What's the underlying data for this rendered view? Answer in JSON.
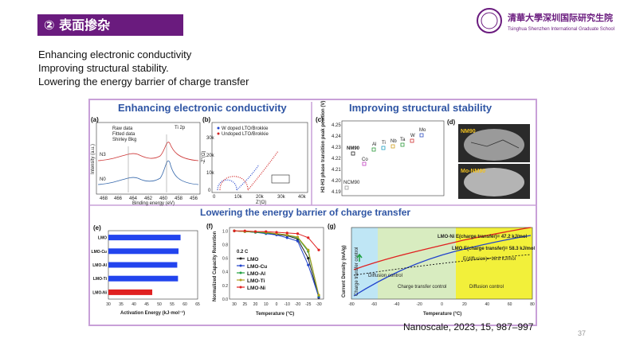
{
  "slide": {
    "title": "② 表面掺杂",
    "bullets": [
      "Enhancing electronic conductivity",
      "Improving structural stability.",
      "Lowering the energy barrier of charge transfer"
    ],
    "citation": "Nanoscale, 2023, 15, 987–997",
    "page_number": "37",
    "logo_text": "清華大學深圳国际研究生院",
    "logo_subtext": "Tsinghua Shenzhen International Graduate School"
  },
  "figure": {
    "section_titles": {
      "top_left": "Enhancing electronic conductivity",
      "top_right": "Improving structural stability",
      "bottom": "Lowering the energy barrier of charge transfer"
    },
    "panel_letters": [
      "(a)",
      "(b)",
      "(c)",
      "(d)",
      "(e)",
      "(f)",
      "(g)"
    ],
    "panel_a": {
      "legend": [
        "Raw data",
        "Fitted data",
        "Shirley Bkg"
      ],
      "corner_label": "Ti 2p",
      "samples": [
        "N3",
        "N0"
      ],
      "ylabel": "Intensity (a.u.)",
      "xlabel": "Binding energy (eV)",
      "xticks": [
        "468",
        "466",
        "464",
        "462",
        "460",
        "458",
        "456"
      ]
    },
    "panel_b": {
      "legend": [
        "W doped LTO/Brokkie",
        "Undoped LTO/Brokkie"
      ],
      "ylabel": "-Z''(Ω)",
      "xlabel": "Z'(Ω)",
      "yticks": [
        "30k",
        "20k",
        "10k",
        "0"
      ],
      "xticks": [
        "0",
        "10k",
        "20k",
        "30k",
        "40k"
      ]
    },
    "panel_c": {
      "ylabel": "H2-H3 phase transition peak position (V)",
      "yticks": [
        "4.25",
        "4.24",
        "4.23",
        "4.22",
        "4.21",
        "4.20",
        "4.19"
      ],
      "points": [
        {
          "label": "NM90",
          "color": "#222222"
        },
        {
          "label": "Co",
          "color": "#c040c0"
        },
        {
          "label": "Al",
          "color": "#2a9a3a"
        },
        {
          "label": "Ti",
          "color": "#20a0c0"
        },
        {
          "label": "Nb",
          "color": "#d0a020"
        },
        {
          "label": "Ta",
          "color": "#2a9a3a"
        },
        {
          "label": "W",
          "color": "#d03030"
        },
        {
          "label": "Mo",
          "color": "#3050c0"
        },
        {
          "label": "NCM90",
          "color": "#999999"
        }
      ]
    },
    "panel_d": {
      "labels": [
        "NM90",
        "Mo-NM90"
      ]
    },
    "panel_e": {
      "xlabel": "Activation Energy (kJ·mol⁻¹)",
      "xticks": [
        "30",
        "35",
        "40",
        "45",
        "50",
        "55",
        "60",
        "65"
      ],
      "bar_color": "#2244ee",
      "highlight_color": "#e02020"
    },
    "panel_f": {
      "ylabel": "Normalized Capacity Retention",
      "xlabel": "Temperature (°C)",
      "annotation": "0.2 C",
      "yticks": [
        "1.0",
        "0.8",
        "0.6",
        "0.4",
        "0.2",
        "0.0"
      ],
      "xticks": [
        "30",
        "25",
        "20",
        "10",
        "0",
        "-10",
        "-20",
        "-25",
        "-30"
      ],
      "legend": [
        {
          "name": "LMO",
          "color": "#222222"
        },
        {
          "name": "LMO-Cu",
          "color": "#2244cc"
        },
        {
          "name": "LMO-Al",
          "color": "#20a040"
        },
        {
          "name": "LMO-Ti",
          "color": "#b0a020"
        },
        {
          "name": "LMO-Ni",
          "color": "#e02020"
        }
      ]
    },
    "panel_g": {
      "ylabel": "Current Density (mA/g)",
      "xlabel": "Temperature (°C)",
      "xticks": [
        "-80",
        "-60",
        "-40",
        "-20",
        "0",
        "20",
        "40",
        "60",
        "80"
      ],
      "regions": [
        "Charge transfer control",
        "Diffusion control",
        "Charge transfer control",
        "Diffusion control"
      ],
      "curve_labels": [
        "LMO-Ni E(charge transfer)= 47.2 kJ/mol",
        "LMO E(charge transfer)= 58.3 kJ/mol",
        "E(diffusion)= 18.8 kJ/mol"
      ]
    }
  },
  "chart_data": [
    {
      "type": "bar",
      "title": "",
      "orientation": "horizontal",
      "categories": [
        "LMO",
        "LMO-Cu",
        "LMO-Al",
        "LMO-Ti",
        "LMO-Ni"
      ],
      "values": [
        58.3,
        57.5,
        57.0,
        57.3,
        47.2
      ],
      "xlabel": "Activation Energy (kJ·mol⁻¹)",
      "xlim": [
        30,
        65
      ]
    },
    {
      "type": "line",
      "title": "",
      "x": [
        30,
        25,
        20,
        10,
        0,
        -10,
        -20,
        -25,
        -30
      ],
      "series": [
        {
          "name": "LMO",
          "values": [
            1.0,
            0.99,
            0.98,
            0.97,
            0.95,
            0.93,
            0.88,
            0.6,
            0.02
          ]
        },
        {
          "name": "LMO-Cu",
          "values": [
            1.0,
            0.99,
            0.98,
            0.96,
            0.94,
            0.9,
            0.85,
            0.5,
            0.03
          ]
        },
        {
          "name": "LMO-Al",
          "values": [
            1.0,
            0.99,
            0.98,
            0.97,
            0.96,
            0.94,
            0.9,
            0.7,
            0.05
          ]
        },
        {
          "name": "LMO-Ti",
          "values": [
            1.0,
            0.99,
            0.99,
            0.98,
            0.96,
            0.94,
            0.91,
            0.72,
            0.06
          ]
        },
        {
          "name": "LMO-Ni",
          "values": [
            1.0,
            1.0,
            0.99,
            0.99,
            0.98,
            0.97,
            0.96,
            0.9,
            0.72
          ]
        }
      ],
      "xlabel": "Temperature (°C)",
      "ylabel": "Normalized Capacity Retention",
      "ylim": [
        0,
        1.05
      ]
    }
  ]
}
